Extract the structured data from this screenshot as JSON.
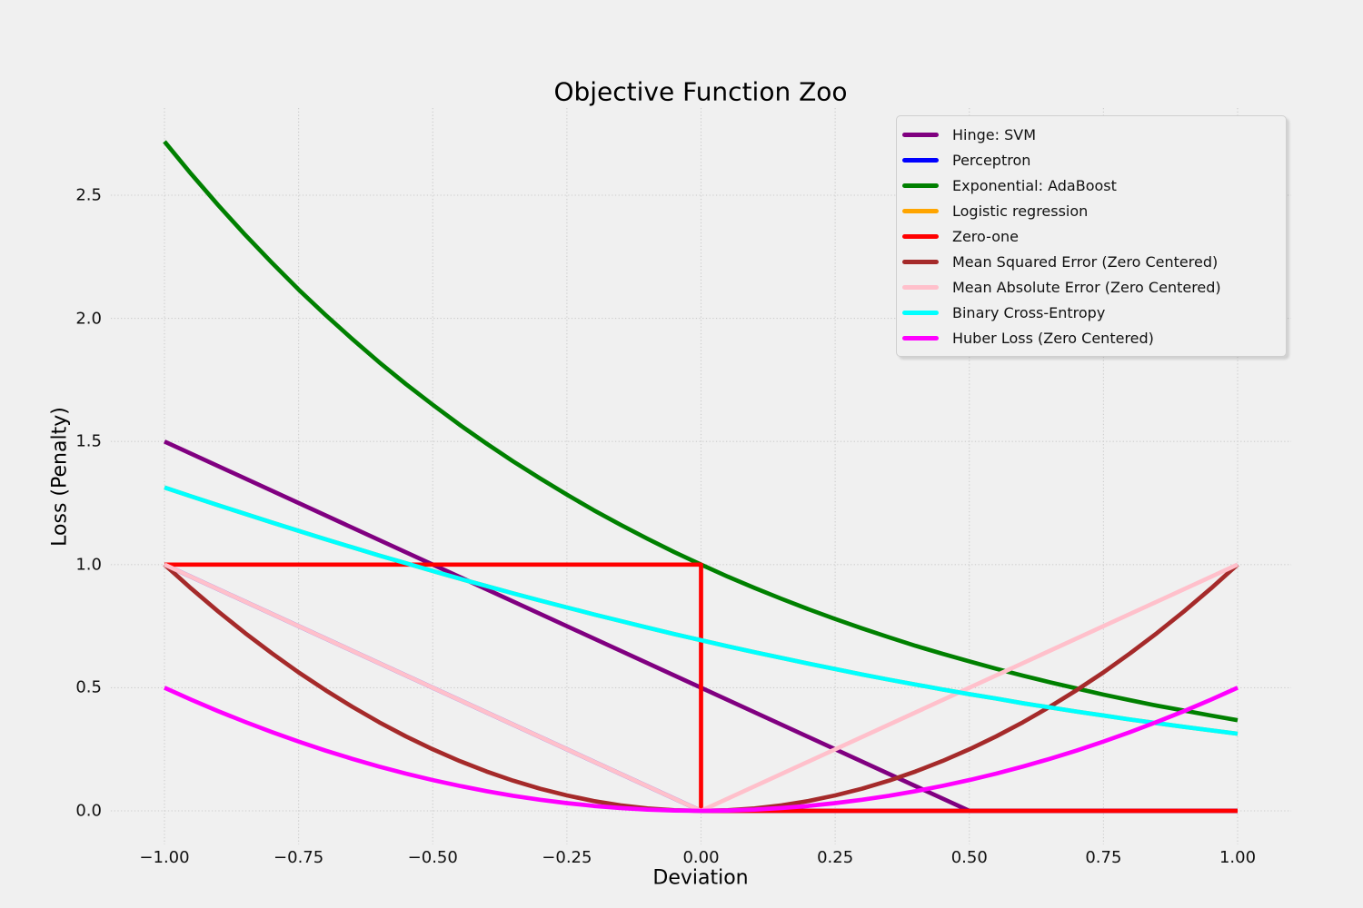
{
  "chart_data": {
    "type": "line",
    "title": "Objective Function Zoo",
    "xlabel": "Deviation",
    "ylabel": "Loss (Penalty)",
    "xlim": [
      -1.1,
      1.1
    ],
    "ylim": [
      -0.136,
      2.854
    ],
    "grid": "dotted",
    "legend_position": "upper right",
    "x_ticks": [
      -1.0,
      -0.75,
      -0.5,
      -0.25,
      0.0,
      0.25,
      0.5,
      0.75,
      1.0
    ],
    "x_tick_labels": [
      "−1.00",
      "−0.75",
      "−0.50",
      "−0.25",
      "0.00",
      "0.25",
      "0.50",
      "0.75",
      "1.00"
    ],
    "y_ticks": [
      0.0,
      0.5,
      1.0,
      1.5,
      2.0,
      2.5
    ],
    "y_tick_labels": [
      "0.0",
      "0.5",
      "1.0",
      "1.5",
      "2.0",
      "2.5"
    ],
    "sample_x": [
      -1,
      -0.95,
      -0.9,
      -0.85,
      -0.8,
      -0.75,
      -0.7,
      -0.65,
      -0.6,
      -0.55,
      -0.5,
      -0.45,
      -0.4,
      -0.35,
      -0.3,
      -0.25,
      -0.2,
      -0.15,
      -0.1,
      -0.05,
      0,
      0.05,
      0.1,
      0.15,
      0.2,
      0.25,
      0.3,
      0.35,
      0.4,
      0.45,
      0.5,
      0.55,
      0.6,
      0.65,
      0.7,
      0.75,
      0.8,
      0.85,
      0.9,
      0.95,
      1
    ],
    "series": [
      {
        "name": "Hinge: SVM",
        "color": "#800080",
        "points": [
          [
            -1,
            1.5
          ],
          [
            0.5,
            0
          ],
          [
            1,
            0
          ]
        ]
      },
      {
        "name": "Perceptron",
        "color": "#0000ff",
        "points": [
          [
            -1,
            1
          ],
          [
            0,
            0
          ],
          [
            1,
            0
          ]
        ]
      },
      {
        "name": "Exponential: AdaBoost",
        "color": "#008000",
        "y": [
          2.718,
          2.586,
          2.46,
          2.34,
          2.226,
          2.117,
          2.014,
          1.916,
          1.822,
          1.733,
          1.649,
          1.568,
          1.492,
          1.419,
          1.35,
          1.284,
          1.221,
          1.162,
          1.105,
          1.051,
          1,
          0.951,
          0.905,
          0.861,
          0.819,
          0.779,
          0.741,
          0.705,
          0.67,
          0.638,
          0.607,
          0.577,
          0.549,
          0.522,
          0.497,
          0.472,
          0.449,
          0.427,
          0.407,
          0.387,
          0.368
        ]
      },
      {
        "name": "Logistic regression",
        "color": "#ffa500",
        "y": [
          1.313,
          1.277,
          1.241,
          1.206,
          1.171,
          1.137,
          1.103,
          1.07,
          1.037,
          1.006,
          0.974,
          0.943,
          0.913,
          0.883,
          0.854,
          0.826,
          0.798,
          0.771,
          0.744,
          0.718,
          0.693,
          0.668,
          0.644,
          0.621,
          0.598,
          0.576,
          0.554,
          0.533,
          0.513,
          0.493,
          0.474,
          0.456,
          0.437,
          0.42,
          0.403,
          0.387,
          0.371,
          0.356,
          0.341,
          0.327,
          0.313
        ]
      },
      {
        "name": "Zero-one",
        "color": "#ff0000",
        "points": [
          [
            -1,
            1
          ],
          [
            0,
            1
          ],
          [
            0,
            0
          ],
          [
            1,
            0
          ]
        ]
      },
      {
        "name": "Mean Squared Error (Zero Centered)",
        "color": "#a52a2a",
        "y": [
          1,
          0.9025,
          0.81,
          0.7225,
          0.64,
          0.5625,
          0.49,
          0.4225,
          0.36,
          0.3025,
          0.25,
          0.2025,
          0.16,
          0.1225,
          0.09,
          0.0625,
          0.04,
          0.0225,
          0.01,
          0.0025,
          0,
          0.0025,
          0.01,
          0.0225,
          0.04,
          0.0625,
          0.09,
          0.1225,
          0.16,
          0.2025,
          0.25,
          0.3025,
          0.36,
          0.4225,
          0.49,
          0.5625,
          0.64,
          0.7225,
          0.81,
          0.9025,
          1
        ]
      },
      {
        "name": "Mean Absolute Error (Zero Centered)",
        "color": "#ffc0cb",
        "points": [
          [
            -1,
            1
          ],
          [
            0,
            0
          ],
          [
            1,
            1
          ]
        ]
      },
      {
        "name": "Binary Cross-Entropy",
        "color": "#00ffff",
        "y": [
          1.313,
          1.277,
          1.241,
          1.206,
          1.171,
          1.137,
          1.103,
          1.07,
          1.037,
          1.006,
          0.974,
          0.943,
          0.913,
          0.883,
          0.854,
          0.826,
          0.798,
          0.771,
          0.744,
          0.718,
          0.693,
          0.668,
          0.644,
          0.621,
          0.598,
          0.576,
          0.554,
          0.533,
          0.513,
          0.493,
          0.474,
          0.456,
          0.437,
          0.42,
          0.403,
          0.387,
          0.371,
          0.356,
          0.341,
          0.327,
          0.313
        ]
      },
      {
        "name": "Huber Loss (Zero Centered)",
        "color": "#ff00ff",
        "y": [
          0.5,
          0.4513,
          0.405,
          0.3613,
          0.32,
          0.2813,
          0.245,
          0.2113,
          0.18,
          0.1513,
          0.125,
          0.1013,
          0.08,
          0.0613,
          0.045,
          0.0313,
          0.02,
          0.0113,
          0.005,
          0.0013,
          0,
          0.0013,
          0.005,
          0.0113,
          0.02,
          0.0313,
          0.045,
          0.0613,
          0.08,
          0.1013,
          0.125,
          0.1513,
          0.18,
          0.2113,
          0.245,
          0.2813,
          0.32,
          0.3613,
          0.405,
          0.4513,
          0.5
        ]
      }
    ],
    "style": {
      "background": "#f0f0f0",
      "grid_color": "#c9c9c9",
      "line_width": 4.7
    }
  }
}
